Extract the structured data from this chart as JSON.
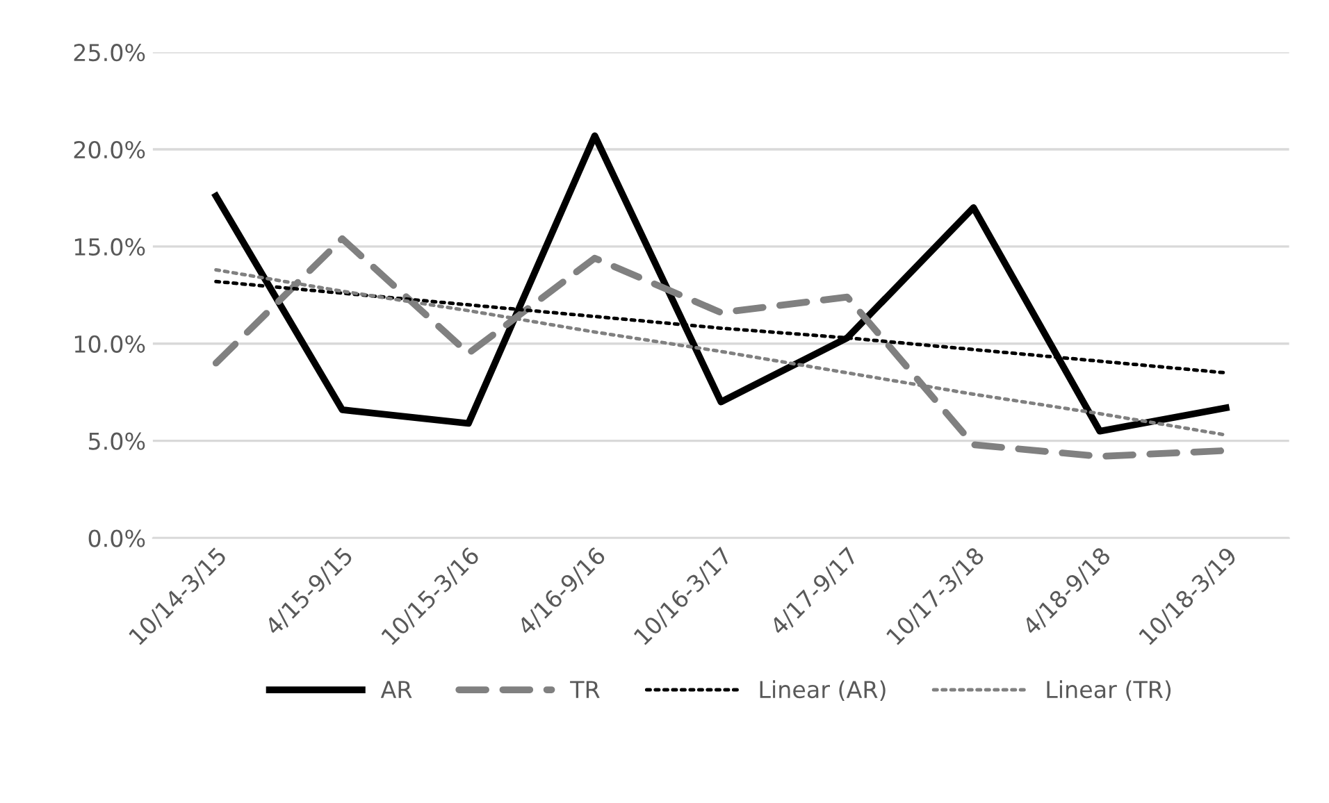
{
  "chart_data": {
    "type": "line",
    "categories": [
      "10/14-3/15",
      "4/15-9/15",
      "10/15-3/16",
      "4/16-9/16",
      "10/16-3/17",
      "4/17-9/17",
      "10/17-3/18",
      "4/18-9/18",
      "10/18-3/19"
    ],
    "series": [
      {
        "name": "AR",
        "color": "#000000",
        "line_style": "solid",
        "values": [
          17.6,
          6.6,
          5.9,
          20.7,
          7.0,
          10.3,
          17.0,
          5.5,
          6.7
        ]
      },
      {
        "name": "TR",
        "color": "#808080",
        "line_style": "dashed",
        "values": [
          9.0,
          15.4,
          9.5,
          14.4,
          11.6,
          12.4,
          4.8,
          4.2,
          4.5
        ]
      },
      {
        "name": "Linear (AR)",
        "color": "#000000",
        "line_style": "dotted",
        "values": [
          13.2,
          12.6,
          12.0,
          11.4,
          10.8,
          10.3,
          9.7,
          9.1,
          8.5
        ]
      },
      {
        "name": "Linear (TR)",
        "color": "#808080",
        "line_style": "dotted",
        "values": [
          13.8,
          12.7,
          11.7,
          10.6,
          9.6,
          8.5,
          7.4,
          6.4,
          5.3
        ]
      }
    ],
    "ylim": [
      0,
      25
    ],
    "yticks": [
      {
        "value": 0,
        "label": "0.0%"
      },
      {
        "value": 5,
        "label": "5.0%"
      },
      {
        "value": 10,
        "label": "10.0%"
      },
      {
        "value": 15,
        "label": "15.0%"
      },
      {
        "value": 20,
        "label": "20.0%"
      },
      {
        "value": 25,
        "label": "25.0%"
      }
    ],
    "grid": "y",
    "legend": "bottom",
    "marker": "none"
  }
}
